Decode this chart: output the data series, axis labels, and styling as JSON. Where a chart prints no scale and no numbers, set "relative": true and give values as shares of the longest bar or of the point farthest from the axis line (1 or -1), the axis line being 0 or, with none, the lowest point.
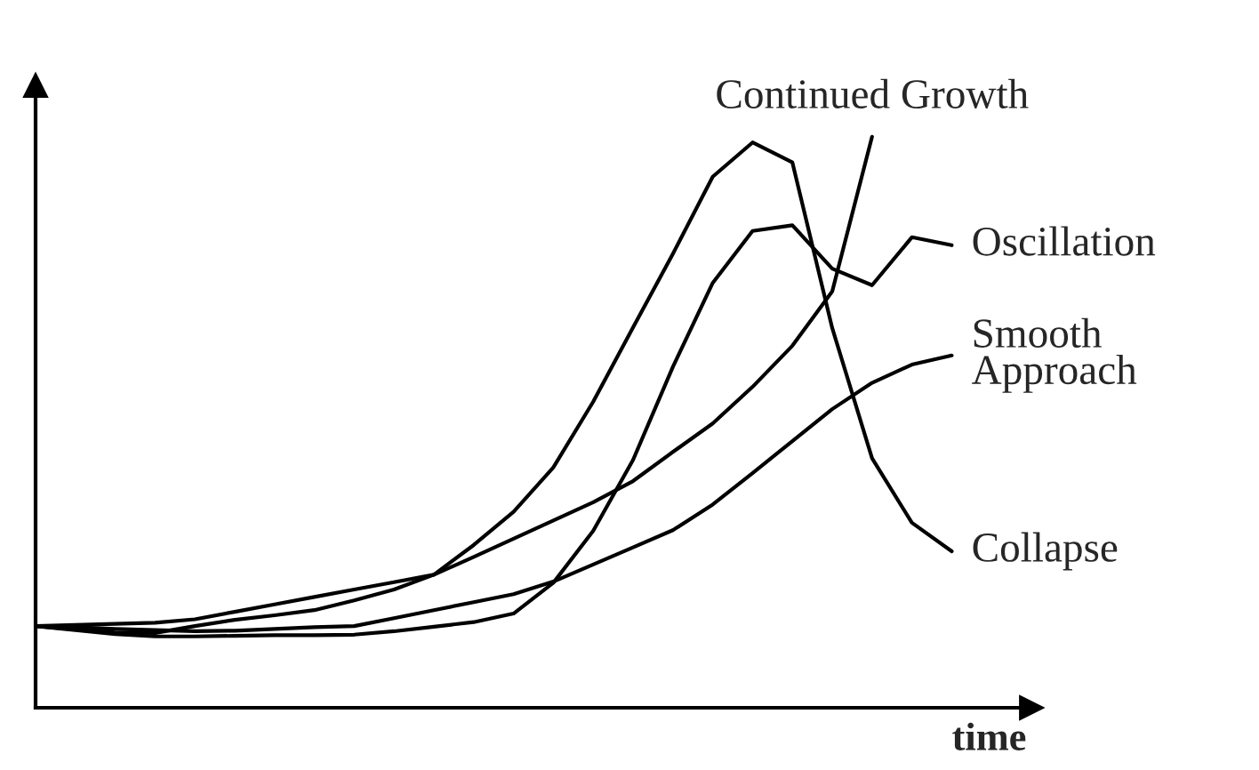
{
  "chart_data": {
    "type": "line",
    "relative": true,
    "xlabel": "time",
    "categories": [
      null,
      null,
      null,
      null,
      null,
      null,
      null,
      null,
      null,
      null,
      null,
      null,
      null,
      null,
      null,
      null,
      null,
      null,
      null,
      null,
      null,
      null,
      null,
      null
    ],
    "series": [
      {
        "name": "Continued Growth",
        "color": "#000000",
        "values": [
          0.143,
          0.145,
          0.147,
          0.149,
          0.155,
          0.168,
          0.181,
          0.194,
          0.207,
          0.22,
          0.233,
          0.264,
          0.296,
          0.328,
          0.36,
          0.397,
          0.448,
          0.498,
          0.562,
          0.634,
          0.729,
          1.0,
          null,
          null
        ]
      },
      {
        "name": "Oscillation",
        "color": "#000000",
        "values": [
          0.143,
          0.136,
          0.129,
          0.125,
          0.125,
          0.126,
          0.127,
          0.127,
          0.128,
          0.134,
          0.142,
          0.15,
          0.165,
          0.219,
          0.31,
          0.434,
          0.597,
          0.744,
          0.835,
          0.845,
          0.769,
          0.74,
          0.824,
          0.81
        ]
      },
      {
        "name": "Smooth\nApproach",
        "color": "#000000",
        "values": [
          0.143,
          0.141,
          0.138,
          0.136,
          0.134,
          0.135,
          0.138,
          0.141,
          0.143,
          0.157,
          0.171,
          0.185,
          0.199,
          0.221,
          0.251,
          0.281,
          0.311,
          0.356,
          0.411,
          0.467,
          0.523,
          0.569,
          0.601,
          0.617
        ]
      },
      {
        "name": "Collapse",
        "color": "#000000",
        "values": [
          0.143,
          0.137,
          0.132,
          0.131,
          0.143,
          0.154,
          0.162,
          0.171,
          0.188,
          0.207,
          0.233,
          0.285,
          0.343,
          0.421,
          0.536,
          0.666,
          0.795,
          0.93,
          0.99,
          0.955,
          0.665,
          0.437,
          0.324,
          0.274
        ]
      }
    ]
  }
}
